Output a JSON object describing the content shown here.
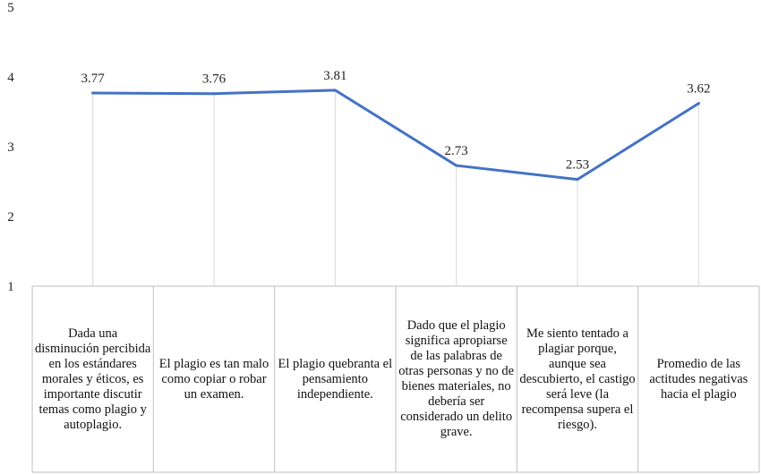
{
  "chart_data": {
    "type": "line",
    "title": "",
    "xlabel": "",
    "ylabel": "",
    "ylim": [
      1,
      5
    ],
    "yticks": [
      "1",
      "2",
      "3",
      "4",
      "5"
    ],
    "grid": false,
    "line_color": "#4472C4",
    "categories": [
      "Dada una disminución percibida en los estándares morales y éticos, es importante discutir temas como plagio y autoplagio.",
      "El plagio es tan malo como copiar o robar un examen.",
      "El plagio quebranta el pensamiento independiente.",
      "Dado que el plagio significa apropiarse de las palabras de otras personas y no de bienes materiales, no debería ser considerado un delito grave.",
      "Me siento tentado a plagiar porque, aunque sea descubierto, el castigo será leve (la recompensa supera el riesgo).",
      "Promedio de las actitudes negativas hacia el plagio"
    ],
    "series": [
      {
        "values": [
          3.77,
          3.76,
          3.81,
          2.73,
          2.53,
          3.62
        ],
        "labels": [
          "3.77",
          "3.76",
          "3.81",
          "2.73",
          "2.53",
          "3.62"
        ]
      }
    ]
  }
}
